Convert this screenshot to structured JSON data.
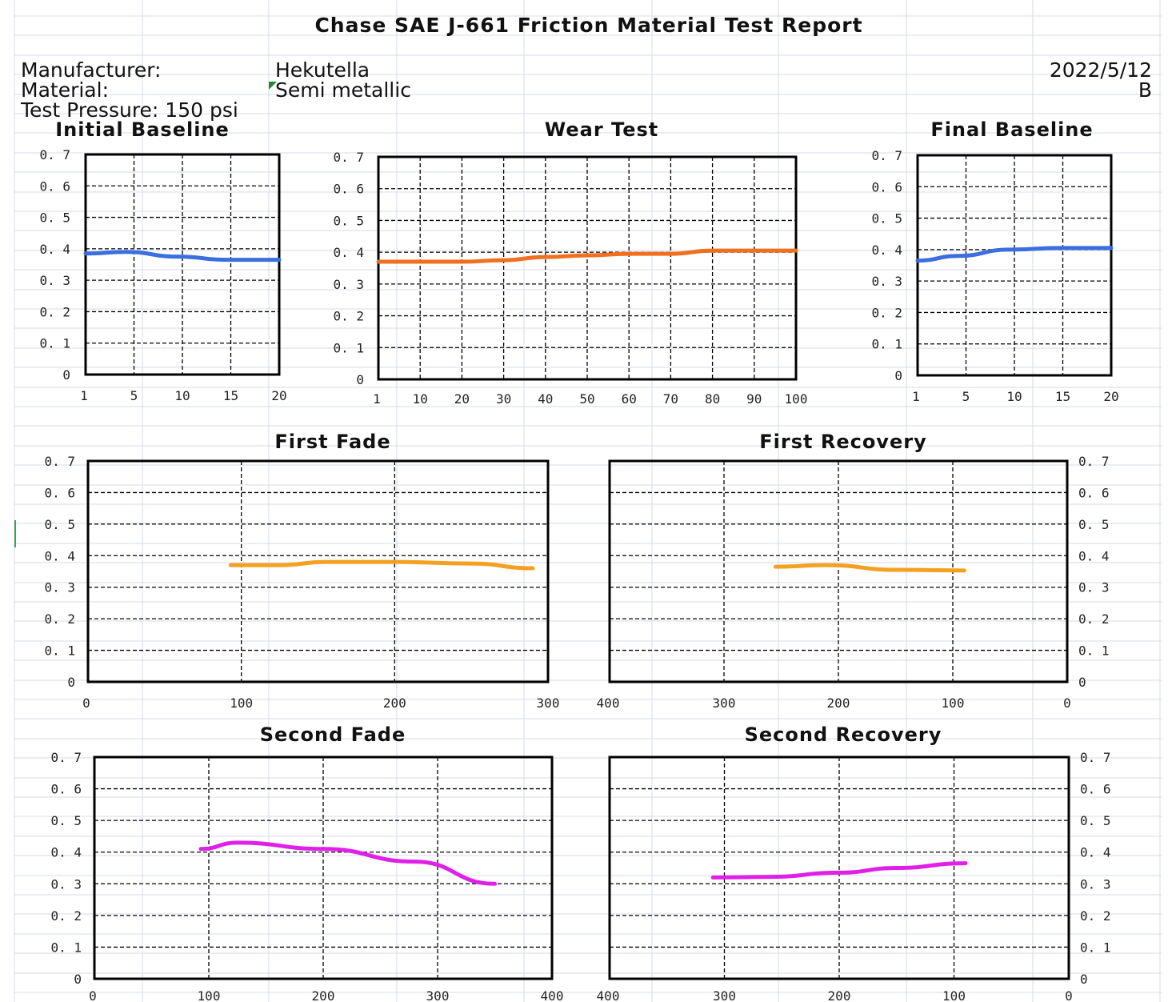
{
  "report": {
    "title": "Chase  SAE J-661 Friction Material Test Report",
    "manufacturer_label": "Manufacturer:",
    "manufacturer_value": "Hekutella",
    "date": "2022/5/12",
    "material_label": "Material:",
    "material_value": "Semi metallic",
    "grade": "B",
    "pressure_label": "Test Pressure: 150 psi"
  },
  "colors": {
    "baseline": "#3b6fe0",
    "wear": "#f07020",
    "fade_recovery_1": "#f5a020",
    "fade_recovery_2": "#e020e8"
  },
  "chart_data": [
    {
      "id": "initial",
      "title": "Initial Baseline",
      "type": "line",
      "xticks": [
        "1",
        "5",
        "10",
        "15",
        "20"
      ],
      "xlim": [
        1,
        20
      ],
      "yticks": [
        "0",
        "0. 1",
        "0. 2",
        "0. 3",
        "0. 4",
        "0. 5",
        "0. 6",
        "0. 7"
      ],
      "ylim": [
        0,
        0.7
      ],
      "color": "#3b6fe0",
      "x": [
        1,
        5,
        10,
        15,
        20
      ],
      "y": [
        0.385,
        0.39,
        0.375,
        0.365,
        0.365
      ]
    },
    {
      "id": "wear",
      "title": "Wear Test",
      "type": "line",
      "xticks": [
        "1",
        "10",
        "20",
        "30",
        "40",
        "50",
        "60",
        "70",
        "80",
        "90",
        "100"
      ],
      "xlim": [
        0,
        100
      ],
      "yticks": [
        "0",
        "0. 1",
        "0. 2",
        "0. 3",
        "0. 4",
        "0. 5",
        "0. 6",
        "0. 7"
      ],
      "ylim": [
        0,
        0.7
      ],
      "color": "#f07020",
      "x": [
        0,
        10,
        20,
        30,
        40,
        50,
        60,
        70,
        80,
        90,
        100
      ],
      "y": [
        0.37,
        0.37,
        0.37,
        0.375,
        0.385,
        0.39,
        0.395,
        0.395,
        0.405,
        0.405,
        0.405
      ]
    },
    {
      "id": "final",
      "title": "Final Baseline",
      "type": "line",
      "xticks": [
        "1",
        "5",
        "10",
        "15",
        "20"
      ],
      "xlim": [
        1,
        20
      ],
      "yticks": [
        "0",
        "0. 1",
        "0. 2",
        "0. 3",
        "0. 4",
        "0. 5",
        "0. 6",
        "0. 7"
      ],
      "ylim": [
        0,
        0.7
      ],
      "color": "#3b6fe0",
      "x": [
        1,
        5,
        10,
        15,
        20
      ],
      "y": [
        0.365,
        0.38,
        0.4,
        0.405,
        0.405
      ]
    },
    {
      "id": "fade1",
      "title": "First Fade",
      "type": "line",
      "xticks": [
        "0",
        "100",
        "200",
        "300"
      ],
      "xlim": [
        0,
        300
      ],
      "yticks": [
        "0",
        "0. 1",
        "0. 2",
        "0. 3",
        "0. 4",
        "0. 5",
        "0. 6",
        "0. 7"
      ],
      "ylim": [
        0,
        0.7
      ],
      "color": "#f5a020",
      "x": [
        93,
        125,
        155,
        200,
        250,
        290
      ],
      "y": [
        0.37,
        0.37,
        0.38,
        0.38,
        0.375,
        0.36
      ]
    },
    {
      "id": "recovery1",
      "title": "First Recovery",
      "type": "line",
      "xticks": [
        "400",
        "300",
        "200",
        "100",
        "0"
      ],
      "xlim": [
        400,
        0
      ],
      "yticks": [
        "0",
        "0. 1",
        "0. 2",
        "0. 3",
        "0. 4",
        "0. 5",
        "0. 6",
        "0. 7"
      ],
      "ylim": [
        0,
        0.7
      ],
      "color": "#f5a020",
      "x": [
        255,
        210,
        150,
        90
      ],
      "y": [
        0.365,
        0.37,
        0.355,
        0.353
      ]
    },
    {
      "id": "fade2",
      "title": "Second Fade",
      "type": "line",
      "xticks": [
        "0",
        "100",
        "200",
        "300",
        "400"
      ],
      "xlim": [
        0,
        400
      ],
      "yticks": [
        "0",
        "0. 1",
        "0. 2",
        "0. 3",
        "0. 4",
        "0. 5",
        "0. 6",
        "0. 7"
      ],
      "ylim": [
        0,
        0.7
      ],
      "color": "#e020e8",
      "x": [
        93,
        125,
        200,
        280,
        350
      ],
      "y": [
        0.41,
        0.43,
        0.41,
        0.37,
        0.3
      ]
    },
    {
      "id": "recovery2",
      "title": "Second Recovery",
      "type": "line",
      "xticks": [
        "400",
        "300",
        "200",
        "100",
        "0"
      ],
      "xlim": [
        400,
        0
      ],
      "yticks": [
        "0",
        "0. 1",
        "0. 2",
        "0. 3",
        "0. 4",
        "0. 5",
        "0. 6",
        "0. 7"
      ],
      "ylim": [
        0,
        0.7
      ],
      "color": "#e020e8",
      "x": [
        310,
        260,
        200,
        150,
        90
      ],
      "y": [
        0.32,
        0.322,
        0.335,
        0.35,
        0.365
      ]
    }
  ]
}
